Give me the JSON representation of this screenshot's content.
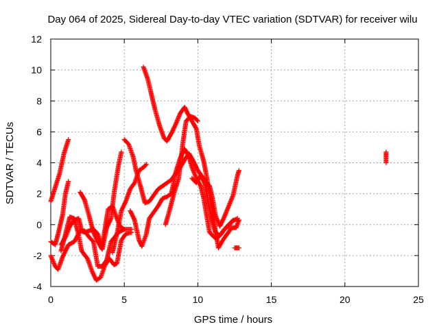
{
  "chart_data": {
    "type": "scatter",
    "title": "Day 064 of 2025, Sidereal Day-to-day VTEC variation (SDTVAR) for receiver wilu",
    "xlabel": "GPS time / hours",
    "ylabel": "SDTVAR / TECUs",
    "xlim": [
      0,
      25
    ],
    "ylim": [
      -4,
      12
    ],
    "xticks": [
      0,
      5,
      10,
      15,
      20,
      25
    ],
    "yticks": [
      -4,
      -2,
      0,
      2,
      4,
      6,
      8,
      10,
      12
    ],
    "grid": true,
    "marker": "+",
    "color": "#ff0000",
    "traces": [
      [
        [
          0.0,
          1.5
        ],
        [
          0.3,
          2.4
        ],
        [
          0.6,
          3.3
        ],
        [
          0.9,
          4.6
        ],
        [
          1.2,
          5.5
        ]
      ],
      [
        [
          0.0,
          -1.1
        ],
        [
          0.3,
          -1.3
        ],
        [
          0.5,
          -0.6
        ],
        [
          0.8,
          0.6
        ],
        [
          1.0,
          2.0
        ],
        [
          1.2,
          2.8
        ]
      ],
      [
        [
          0.0,
          -2.0
        ],
        [
          0.3,
          -2.7
        ],
        [
          0.5,
          -2.9
        ],
        [
          0.8,
          -2.1
        ],
        [
          1.2,
          -1.3
        ],
        [
          1.6,
          -1.1
        ],
        [
          2.0,
          -0.4
        ],
        [
          2.3,
          -0.4
        ],
        [
          2.6,
          -0.8
        ],
        [
          2.9,
          -1.1
        ],
        [
          3.2,
          -2.7
        ],
        [
          3.5,
          -2.7
        ],
        [
          3.8,
          -2.3
        ],
        [
          4.1,
          -1.1
        ],
        [
          4.6,
          -0.5
        ],
        [
          5.0,
          -0.3
        ],
        [
          5.5,
          -0.3
        ]
      ],
      [
        [
          0.7,
          -1.7
        ],
        [
          1.0,
          -0.6
        ],
        [
          1.3,
          0.5
        ],
        [
          1.6,
          0.4
        ],
        [
          1.9,
          -0.7
        ],
        [
          2.1,
          -1.7
        ],
        [
          2.5,
          -2.2
        ],
        [
          2.8,
          -3.0
        ],
        [
          3.1,
          -3.6
        ],
        [
          3.4,
          -3.4
        ],
        [
          3.7,
          -2.6
        ],
        [
          4.0,
          -2.2
        ],
        [
          4.3,
          -2.6
        ],
        [
          4.5,
          -2.5
        ],
        [
          4.8,
          -1.0
        ],
        [
          5.1,
          -0.6
        ],
        [
          5.5,
          -0.5
        ]
      ],
      [
        [
          0.7,
          -1.3
        ],
        [
          1.0,
          -0.8
        ],
        [
          1.3,
          -0.1
        ],
        [
          1.6,
          0.3
        ],
        [
          1.9,
          0.4
        ],
        [
          2.1,
          -0.4
        ],
        [
          2.3,
          -0.5
        ],
        [
          2.6,
          -0.4
        ],
        [
          2.9,
          -0.3
        ],
        [
          3.2,
          -0.6
        ],
        [
          3.5,
          -1.4
        ],
        [
          3.7,
          -0.2
        ],
        [
          3.9,
          1.0
        ],
        [
          4.2,
          1.2
        ],
        [
          4.5,
          0.4
        ],
        [
          4.7,
          -0.1
        ],
        [
          5.0,
          -0.3
        ]
      ],
      [
        [
          2.0,
          2.1
        ],
        [
          2.3,
          1.6
        ],
        [
          2.6,
          0.6
        ],
        [
          2.9,
          -0.5
        ],
        [
          3.2,
          -1.1
        ],
        [
          3.5,
          -1.6
        ],
        [
          3.8,
          -0.2
        ],
        [
          4.1,
          0.4
        ],
        [
          4.3,
          2.0
        ],
        [
          4.6,
          3.8
        ],
        [
          4.8,
          4.7
        ]
      ],
      [
        [
          4.2,
          -1.8
        ],
        [
          4.5,
          -0.6
        ],
        [
          4.8,
          0.9
        ],
        [
          5.1,
          1.5
        ],
        [
          5.4,
          2.3
        ],
        [
          5.7,
          2.7
        ],
        [
          6.0,
          3.5
        ],
        [
          6.3,
          3.7
        ],
        [
          6.5,
          3.9
        ]
      ],
      [
        [
          5.0,
          5.5
        ],
        [
          5.3,
          5.2
        ],
        [
          5.6,
          4.4
        ],
        [
          5.8,
          3.5
        ],
        [
          6.1,
          2.5
        ],
        [
          6.4,
          1.4
        ],
        [
          6.7,
          1.5
        ],
        [
          7.0,
          1.9
        ],
        [
          7.3,
          2.3
        ],
        [
          7.6,
          2.5
        ],
        [
          7.9,
          2.7
        ],
        [
          8.2,
          2.9
        ],
        [
          8.5,
          3.3
        ],
        [
          8.8,
          3.7
        ],
        [
          9.1,
          4.2
        ],
        [
          9.4,
          4.6
        ],
        [
          9.7,
          4.1
        ],
        [
          10.0,
          3.5
        ],
        [
          10.3,
          3.1
        ],
        [
          10.6,
          2.7
        ],
        [
          10.8,
          2.5
        ],
        [
          11.0,
          1.7
        ],
        [
          11.2,
          0.6
        ],
        [
          11.5,
          -0.1
        ],
        [
          11.8,
          0.5
        ],
        [
          12.1,
          1.2
        ],
        [
          12.4,
          1.9
        ],
        [
          12.7,
          3.2
        ],
        [
          12.8,
          3.5
        ]
      ],
      [
        [
          5.4,
          0.9
        ],
        [
          5.7,
          0.3
        ],
        [
          6.0,
          -1.0
        ],
        [
          6.2,
          -1.4
        ],
        [
          6.5,
          -0.6
        ],
        [
          6.7,
          0.4
        ],
        [
          7.0,
          0.8
        ],
        [
          7.3,
          1.2
        ],
        [
          7.6,
          1.7
        ],
        [
          7.9,
          1.8
        ],
        [
          8.2,
          2.0
        ],
        [
          8.5,
          3.4
        ],
        [
          8.8,
          4.3
        ],
        [
          9.1,
          4.9
        ],
        [
          9.4,
          4.4
        ],
        [
          9.6,
          3.7
        ],
        [
          9.9,
          3.0
        ],
        [
          10.2,
          2.5
        ],
        [
          10.4,
          1.7
        ],
        [
          10.6,
          0.6
        ],
        [
          10.8,
          -0.5
        ],
        [
          11.1,
          -0.8
        ],
        [
          11.3,
          -0.9
        ],
        [
          11.6,
          -0.6
        ],
        [
          11.9,
          -0.2
        ],
        [
          12.3,
          0.2
        ],
        [
          12.7,
          0.4
        ]
      ],
      [
        [
          6.3,
          10.2
        ],
        [
          6.6,
          9.4
        ],
        [
          6.8,
          8.6
        ],
        [
          7.1,
          7.4
        ],
        [
          7.4,
          6.4
        ],
        [
          7.7,
          5.6
        ],
        [
          7.9,
          5.4
        ],
        [
          8.2,
          5.9
        ],
        [
          8.5,
          6.5
        ],
        [
          8.8,
          7.2
        ],
        [
          9.1,
          7.6
        ],
        [
          9.3,
          7.2
        ],
        [
          9.6,
          6.7
        ],
        [
          9.9,
          6.2
        ],
        [
          10.1,
          5.1
        ],
        [
          10.4,
          4.1
        ],
        [
          10.6,
          3.1
        ],
        [
          10.9,
          1.4
        ],
        [
          11.2,
          -0.4
        ],
        [
          11.4,
          -1.5
        ],
        [
          11.7,
          -1.0
        ],
        [
          12.0,
          -0.6
        ],
        [
          12.3,
          -0.2
        ],
        [
          12.6,
          -0.2
        ],
        [
          12.8,
          0.3
        ]
      ],
      [
        [
          7.8,
          0.0
        ],
        [
          8.1,
          1.0
        ],
        [
          8.4,
          2.1
        ],
        [
          8.7,
          3.0
        ],
        [
          9.0,
          5.4
        ],
        [
          9.2,
          6.7
        ],
        [
          9.5,
          7.0
        ],
        [
          9.8,
          6.9
        ],
        [
          10.0,
          6.7
        ]
      ],
      [
        [
          9.6,
          3.0
        ],
        [
          9.9,
          2.7
        ],
        [
          10.2,
          3.2
        ],
        [
          10.5,
          2.6
        ],
        [
          10.7,
          1.4
        ],
        [
          10.9,
          0.4
        ],
        [
          11.2,
          -0.5
        ],
        [
          11.5,
          -0.7
        ],
        [
          11.8,
          -0.3
        ],
        [
          12.1,
          -0.1
        ],
        [
          12.4,
          0.3
        ]
      ],
      [
        [
          12.5,
          -1.5
        ],
        [
          12.8,
          -1.5
        ]
      ],
      [
        [
          22.8,
          4.0
        ],
        [
          22.8,
          4.2
        ],
        [
          22.8,
          4.4
        ],
        [
          22.8,
          4.7
        ]
      ]
    ]
  }
}
